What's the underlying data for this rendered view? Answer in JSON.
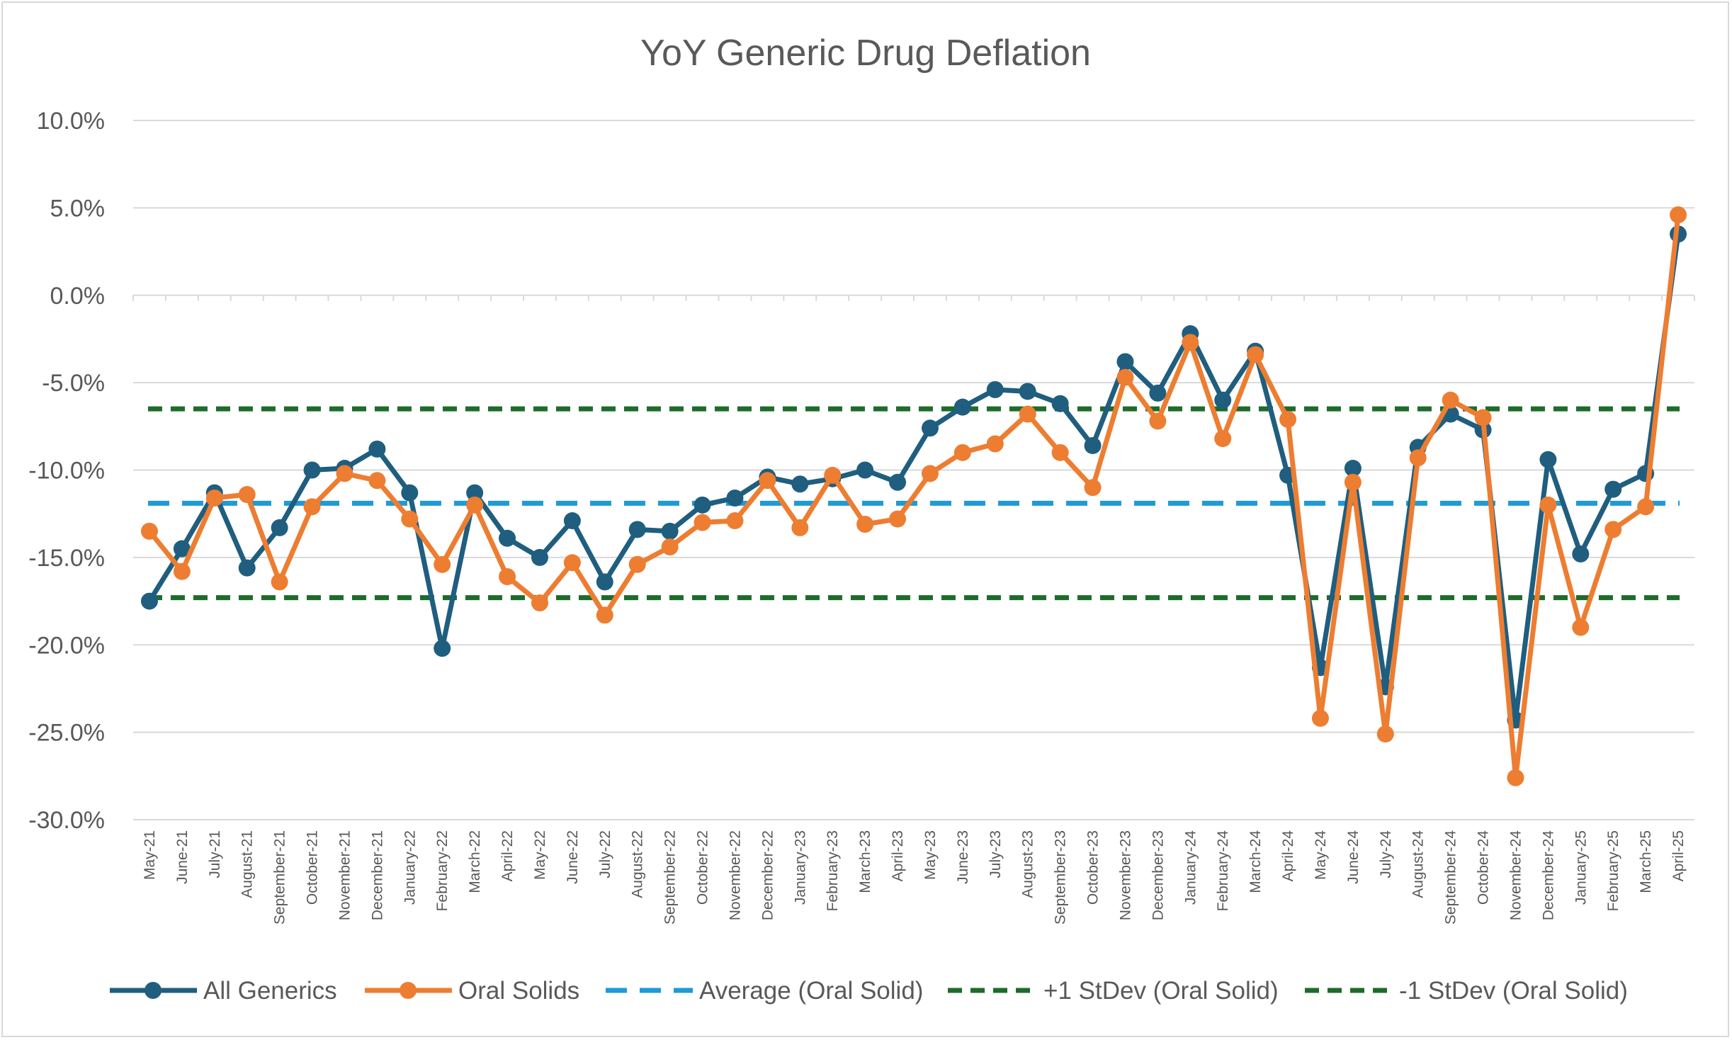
{
  "chart_data": {
    "type": "line",
    "title": "YoY Generic Drug Deflation",
    "xlabel": "",
    "ylabel": "",
    "ylim": [
      -30,
      10
    ],
    "ytick_step": 5,
    "ytick_labels": [
      "10.0%",
      "5.0%",
      "0.0%",
      "-5.0%",
      "-10.0%",
      "-15.0%",
      "-20.0%",
      "-25.0%",
      "-30.0%"
    ],
    "grid": true,
    "legend_position": "bottom",
    "categories": [
      "May-21",
      "June-21",
      "July-21",
      "August-21",
      "September-21",
      "October-21",
      "November-21",
      "December-21",
      "January-22",
      "February-22",
      "March-22",
      "April-22",
      "May-22",
      "June-22",
      "July-22",
      "August-22",
      "September-22",
      "October-22",
      "November-22",
      "December-22",
      "January-23",
      "February-23",
      "March-23",
      "April-23",
      "May-23",
      "June-23",
      "July-23",
      "August-23",
      "September-23",
      "October-23",
      "November-23",
      "December-23",
      "January-24",
      "February-24",
      "March-24",
      "April-24",
      "May-24",
      "June-24",
      "July-24",
      "August-24",
      "September-24",
      "October-24",
      "November-24",
      "December-24",
      "January-25",
      "February-25",
      "March-25",
      "April-25"
    ],
    "series": [
      {
        "name": "All Generics",
        "style": "line-marker",
        "color": "#1f5e7f",
        "values": [
          -17.5,
          -14.5,
          -11.3,
          -15.6,
          -13.3,
          -10.0,
          -9.9,
          -8.8,
          -11.3,
          -20.2,
          -11.3,
          -13.9,
          -15.0,
          -12.9,
          -16.4,
          -13.4,
          -13.5,
          -12.0,
          -11.6,
          -10.4,
          -10.8,
          -10.5,
          -10.0,
          -10.7,
          -7.6,
          -6.4,
          -5.4,
          -5.5,
          -6.2,
          -8.6,
          -3.8,
          -5.6,
          -2.2,
          -6.0,
          -3.2,
          -10.3,
          -21.3,
          -9.9,
          -22.4,
          -8.7,
          -6.8,
          -7.7,
          -24.3,
          -9.4,
          -14.8,
          -11.1,
          -10.2,
          3.5
        ]
      },
      {
        "name": "Oral Solids",
        "style": "line-marker",
        "color": "#ed7d31",
        "values": [
          -13.5,
          -15.8,
          -11.6,
          -11.4,
          -16.4,
          -12.1,
          -10.2,
          -10.6,
          -12.8,
          -15.4,
          -12.0,
          -16.1,
          -17.6,
          -15.3,
          -18.3,
          -15.4,
          -14.4,
          -13.0,
          -12.9,
          -10.6,
          -13.3,
          -10.3,
          -13.1,
          -12.8,
          -10.2,
          -9.0,
          -8.5,
          -6.8,
          -9.0,
          -11.0,
          -4.7,
          -7.2,
          -2.7,
          -8.2,
          -3.4,
          -7.1,
          -24.2,
          -10.7,
          -25.1,
          -9.3,
          -6.0,
          -7.0,
          -27.6,
          -12.0,
          -19.0,
          -13.4,
          -12.1,
          4.6
        ]
      },
      {
        "name": "Average (Oral Solid)",
        "style": "dash",
        "color": "#1f9ad6",
        "constant": -11.9
      },
      {
        "name": "+1 StDev (Oral Solid)",
        "style": "dash",
        "color": "#1e6b2a",
        "constant": -6.5
      },
      {
        "name": "-1 StDev (Oral Solid)",
        "style": "dash",
        "color": "#1e6b2a",
        "constant": -17.3
      }
    ]
  }
}
